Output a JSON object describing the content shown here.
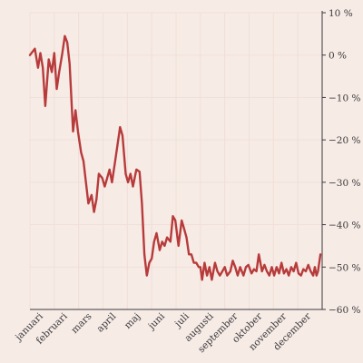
{
  "chart_data": {
    "type": "line",
    "title": "",
    "xlabel": "",
    "ylabel": "",
    "ylim": [
      -60,
      10
    ],
    "yticks": [
      10,
      0,
      -10,
      -20,
      -30,
      -40,
      -50,
      -60
    ],
    "ytick_labels": [
      "10 %",
      "0 %",
      "−10 %",
      "−20 %",
      "−30 %",
      "−40 %",
      "−50 %",
      "−60 %"
    ],
    "month_labels": [
      "januari",
      "februari",
      "mars",
      "april",
      "maj",
      "juni",
      "juli",
      "augusti",
      "september",
      "oktober",
      "november",
      "december"
    ],
    "grid": true,
    "colors": {
      "line": "#b73b3b",
      "grid": "#f0dfd8",
      "axis": "#3a3a3a",
      "background": "#f7ebe6"
    },
    "series": [
      {
        "x": [
          0.0,
          0.2,
          0.33,
          0.43,
          0.53,
          0.63,
          0.77,
          0.9,
          1.0,
          1.1,
          1.2,
          1.33,
          1.43,
          1.53,
          1.63,
          1.77,
          1.87,
          1.97,
          2.1,
          2.2,
          2.3,
          2.4,
          2.53,
          2.63,
          2.73,
          2.83,
          2.97,
          3.07,
          3.17,
          3.27,
          3.37,
          3.5,
          3.6,
          3.7,
          3.8,
          3.93,
          4.03,
          4.13,
          4.23,
          4.37,
          4.5,
          4.6,
          4.7,
          4.8,
          4.9,
          5.0,
          5.1,
          5.2,
          5.33,
          5.43,
          5.53,
          5.63,
          5.77,
          5.87,
          5.97,
          6.1,
          6.23,
          6.33,
          6.43,
          6.53,
          6.63,
          6.73,
          6.83,
          6.93,
          7.0,
          7.07,
          7.17,
          7.27,
          7.37,
          7.47,
          7.6,
          7.7,
          7.8,
          7.9,
          8.0,
          8.1,
          8.23,
          8.33,
          8.43,
          8.53,
          8.63,
          8.77,
          8.87,
          8.97,
          9.1,
          9.2,
          9.3,
          9.4,
          9.53,
          9.63,
          9.73,
          9.83,
          9.93,
          10.03,
          10.13,
          10.23,
          10.33,
          10.43,
          10.53,
          10.63,
          10.73,
          10.83,
          10.93,
          11.03,
          11.13,
          11.23,
          11.33,
          11.43,
          11.53,
          11.63,
          11.7,
          11.77,
          11.83,
          11.93
        ],
        "values": [
          0,
          1.5,
          -3,
          0.5,
          -3,
          -12,
          -1,
          -4,
          0.5,
          -8,
          -4,
          0.5,
          4.5,
          3,
          -2,
          -18,
          -13,
          -18,
          -23,
          -25,
          -30,
          -35,
          -33,
          -37,
          -34,
          -28,
          -29,
          -31,
          -29,
          -27,
          -30,
          -25,
          -21,
          -17,
          -19,
          -28,
          -30,
          -28,
          -31,
          -27,
          -27.5,
          -35,
          -47,
          -52,
          -49,
          -48,
          -44,
          -42,
          -46,
          -44,
          -45,
          -43,
          -44,
          -38,
          -39,
          -45,
          -39,
          -41,
          -43,
          -47,
          -47,
          -49,
          -49,
          -50,
          -50,
          -53,
          -49,
          -52,
          -50,
          -53,
          -49,
          -51,
          -52,
          -51,
          -50,
          -52,
          -51,
          -48.5,
          -50,
          -52,
          -50,
          -52,
          -50,
          -49.5,
          -51.5,
          -50.5,
          -51,
          -47,
          -51,
          -49.5,
          -51,
          -52,
          -50,
          -52,
          -50,
          -51.5,
          -49,
          -51.5,
          -50.5,
          -52,
          -50,
          -51,
          -49,
          -51.5,
          -52,
          -50.5,
          -51,
          -49.5,
          -51,
          -52,
          -50,
          -52,
          -51,
          -47
        ]
      }
    ]
  }
}
